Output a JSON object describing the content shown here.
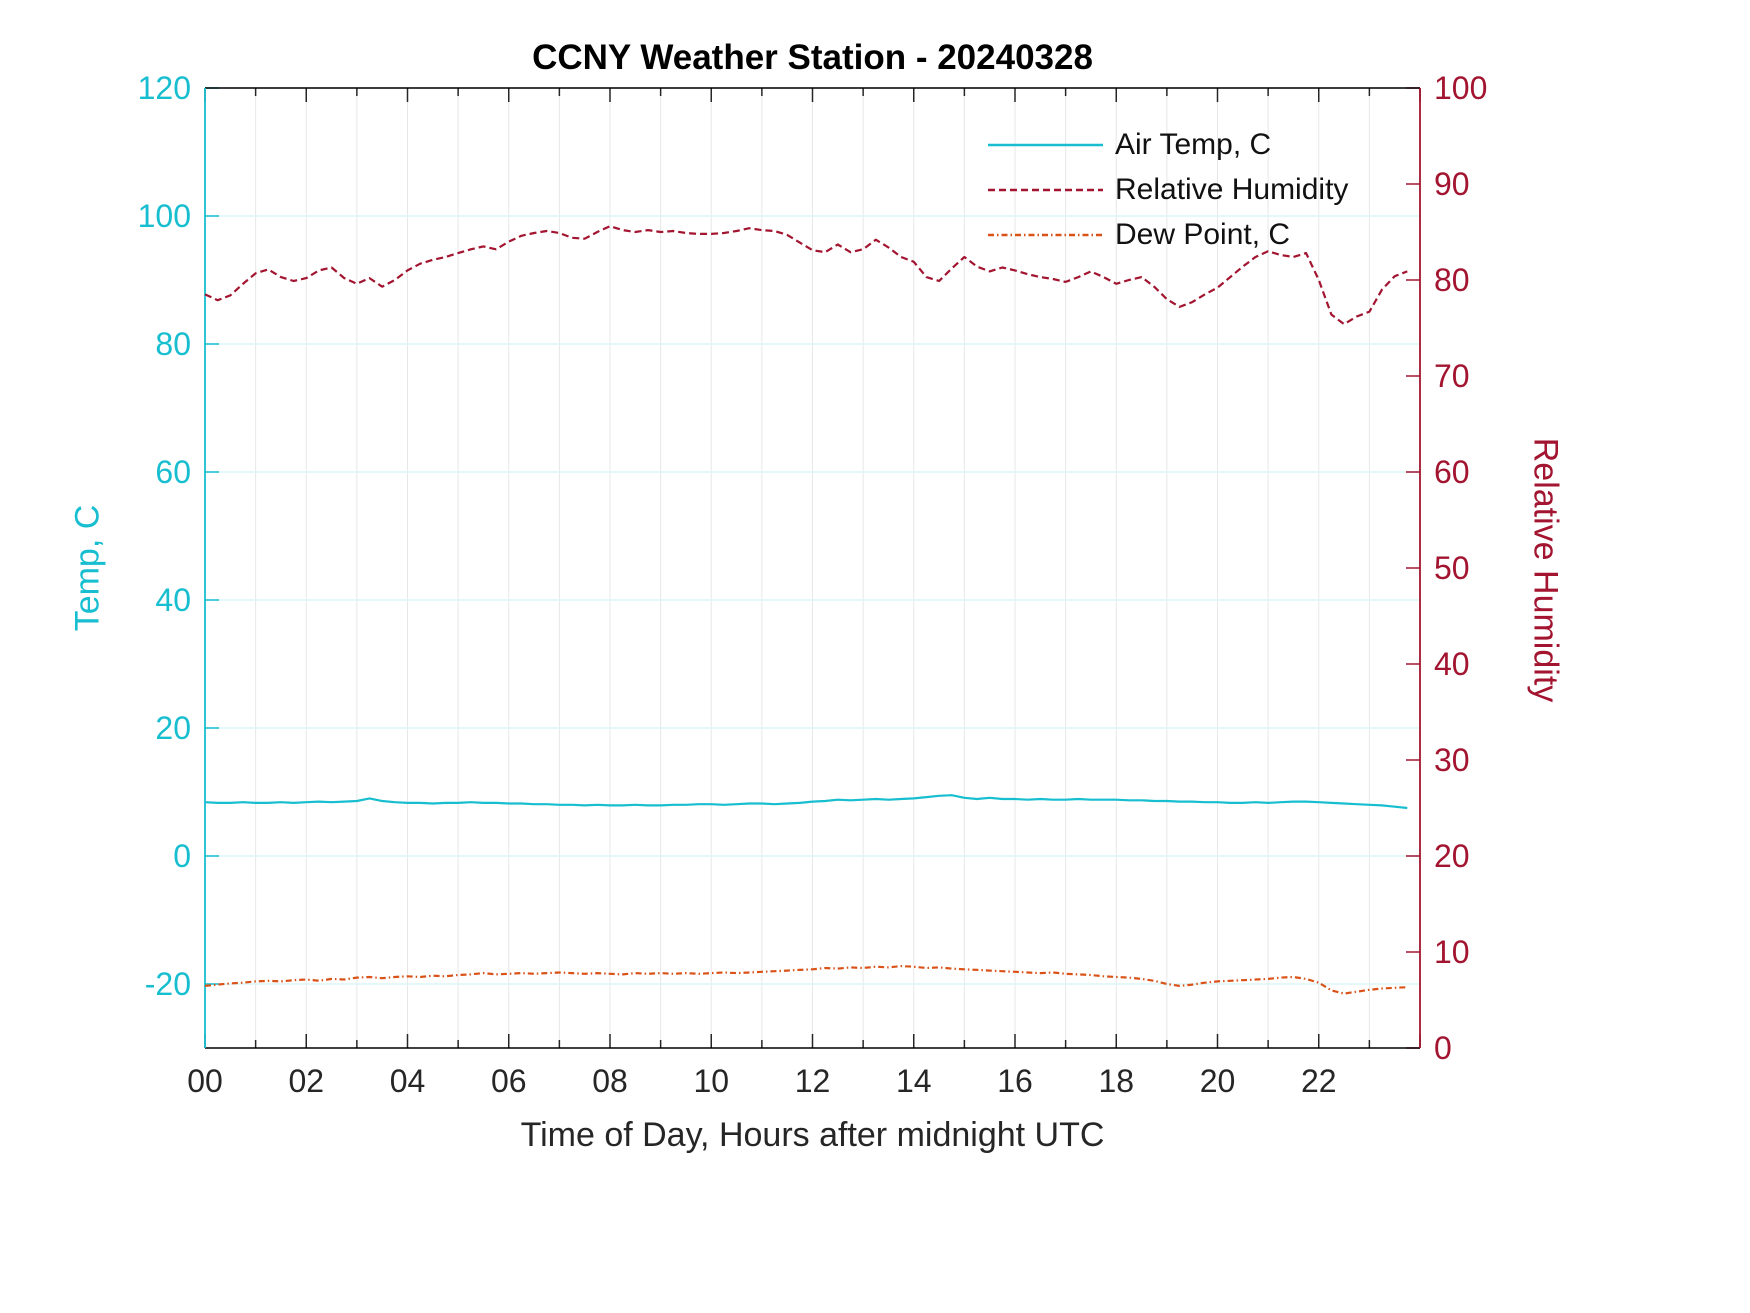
{
  "chart_data": {
    "type": "line",
    "title": "CCNY Weather Station - 20240328",
    "xlabel": "Time of Day, Hours after midnight UTC",
    "left_ylabel": "Temp, C",
    "right_ylabel": "Relative Humidity",
    "x_range": [
      0,
      24
    ],
    "left_ylim": [
      -30,
      120
    ],
    "right_ylim": [
      0,
      100
    ],
    "x_grid_step": 1,
    "x_ticks": {
      "positions": [
        0,
        2,
        4,
        6,
        8,
        10,
        12,
        14,
        16,
        18,
        20,
        22
      ],
      "labels": [
        "00",
        "02",
        "04",
        "06",
        "08",
        "10",
        "12",
        "14",
        "16",
        "18",
        "20",
        "22"
      ]
    },
    "left_ticks": [
      -20,
      0,
      20,
      40,
      60,
      80,
      100,
      120
    ],
    "right_ticks": [
      0,
      10,
      20,
      30,
      40,
      50,
      60,
      70,
      80,
      90,
      100
    ],
    "legend_position": "northeast-inside",
    "grid": true,
    "series": [
      {
        "id": "air-temp",
        "name": "Air Temp, C",
        "axis": "left",
        "color": "#17BECF",
        "style": "solid",
        "t_start": 0,
        "t_step": 0.25,
        "values": [
          8.4,
          8.3,
          8.3,
          8.4,
          8.3,
          8.3,
          8.4,
          8.3,
          8.4,
          8.5,
          8.4,
          8.5,
          8.6,
          9.0,
          8.6,
          8.4,
          8.3,
          8.3,
          8.2,
          8.3,
          8.3,
          8.4,
          8.3,
          8.3,
          8.2,
          8.2,
          8.1,
          8.1,
          8.0,
          8.0,
          7.9,
          8.0,
          7.9,
          7.9,
          8.0,
          7.9,
          7.9,
          8.0,
          8.0,
          8.1,
          8.1,
          8.0,
          8.1,
          8.2,
          8.2,
          8.1,
          8.2,
          8.3,
          8.5,
          8.6,
          8.8,
          8.7,
          8.8,
          8.9,
          8.8,
          8.9,
          9.0,
          9.2,
          9.4,
          9.5,
          9.1,
          8.9,
          9.1,
          8.9,
          8.9,
          8.8,
          8.9,
          8.8,
          8.8,
          8.9,
          8.8,
          8.8,
          8.8,
          8.7,
          8.7,
          8.6,
          8.6,
          8.5,
          8.5,
          8.4,
          8.4,
          8.3,
          8.3,
          8.4,
          8.3,
          8.4,
          8.5,
          8.5,
          8.4,
          8.3,
          8.2,
          8.1,
          8.0,
          7.9,
          7.7,
          7.5
        ]
      },
      {
        "id": "relative-humidity",
        "name": "Relative Humidity",
        "axis": "right",
        "color": "#A2142F",
        "style": "dashed",
        "t_start": 0,
        "t_step": 0.25,
        "values": [
          78.5,
          77.9,
          78.4,
          79.6,
          80.7,
          81.1,
          80.3,
          79.9,
          80.2,
          81.0,
          81.3,
          80.2,
          79.6,
          80.2,
          79.3,
          80.0,
          81.0,
          81.7,
          82.1,
          82.4,
          82.8,
          83.2,
          83.5,
          83.2,
          84.0,
          84.6,
          84.9,
          85.1,
          84.9,
          84.4,
          84.3,
          85.0,
          85.6,
          85.2,
          85.0,
          85.2,
          85.0,
          85.1,
          84.9,
          84.8,
          84.8,
          84.9,
          85.1,
          85.4,
          85.2,
          85.1,
          84.7,
          83.9,
          83.1,
          82.9,
          83.7,
          82.9,
          83.2,
          84.2,
          83.4,
          82.4,
          81.9,
          80.3,
          79.9,
          81.2,
          82.4,
          81.4,
          80.9,
          81.3,
          81.0,
          80.6,
          80.3,
          80.1,
          79.8,
          80.3,
          80.9,
          80.3,
          79.6,
          80.0,
          80.3,
          79.3,
          78.0,
          77.2,
          77.7,
          78.5,
          79.2,
          80.3,
          81.4,
          82.4,
          83.0,
          82.6,
          82.4,
          82.8,
          80.0,
          76.4,
          75.4,
          76.2,
          76.7,
          79.0,
          80.4,
          80.9
        ]
      },
      {
        "id": "dew-point",
        "name": "Dew Point, C",
        "axis": "left",
        "color": "#D95319",
        "style": "dashdot",
        "t_start": 0,
        "t_step": 0.25,
        "values": [
          -20.3,
          -20.1,
          -19.9,
          -19.8,
          -19.6,
          -19.5,
          -19.6,
          -19.4,
          -19.3,
          -19.5,
          -19.2,
          -19.3,
          -19.0,
          -18.9,
          -19.1,
          -18.9,
          -18.8,
          -18.9,
          -18.7,
          -18.8,
          -18.6,
          -18.5,
          -18.3,
          -18.5,
          -18.4,
          -18.3,
          -18.4,
          -18.3,
          -18.2,
          -18.3,
          -18.4,
          -18.3,
          -18.4,
          -18.5,
          -18.3,
          -18.4,
          -18.3,
          -18.4,
          -18.3,
          -18.4,
          -18.3,
          -18.2,
          -18.3,
          -18.2,
          -18.1,
          -18.0,
          -17.9,
          -17.8,
          -17.7,
          -17.5,
          -17.6,
          -17.4,
          -17.5,
          -17.3,
          -17.4,
          -17.2,
          -17.3,
          -17.5,
          -17.4,
          -17.6,
          -17.7,
          -17.8,
          -17.9,
          -18.0,
          -18.1,
          -18.2,
          -18.3,
          -18.2,
          -18.4,
          -18.5,
          -18.6,
          -18.8,
          -18.9,
          -19.0,
          -19.2,
          -19.5,
          -20.0,
          -20.3,
          -20.1,
          -19.8,
          -19.6,
          -19.5,
          -19.4,
          -19.3,
          -19.2,
          -19.0,
          -18.9,
          -19.2,
          -19.8,
          -21.0,
          -21.5,
          -21.2,
          -20.9,
          -20.7,
          -20.6,
          -20.5
        ]
      }
    ]
  },
  "colors": {
    "left_axis": "#17BECF",
    "right_axis": "#A2142F",
    "axis_box": "#000000",
    "axis_text": "#262626",
    "grid_h": "#DCF5F9",
    "grid_v": "#E7E7E7"
  }
}
